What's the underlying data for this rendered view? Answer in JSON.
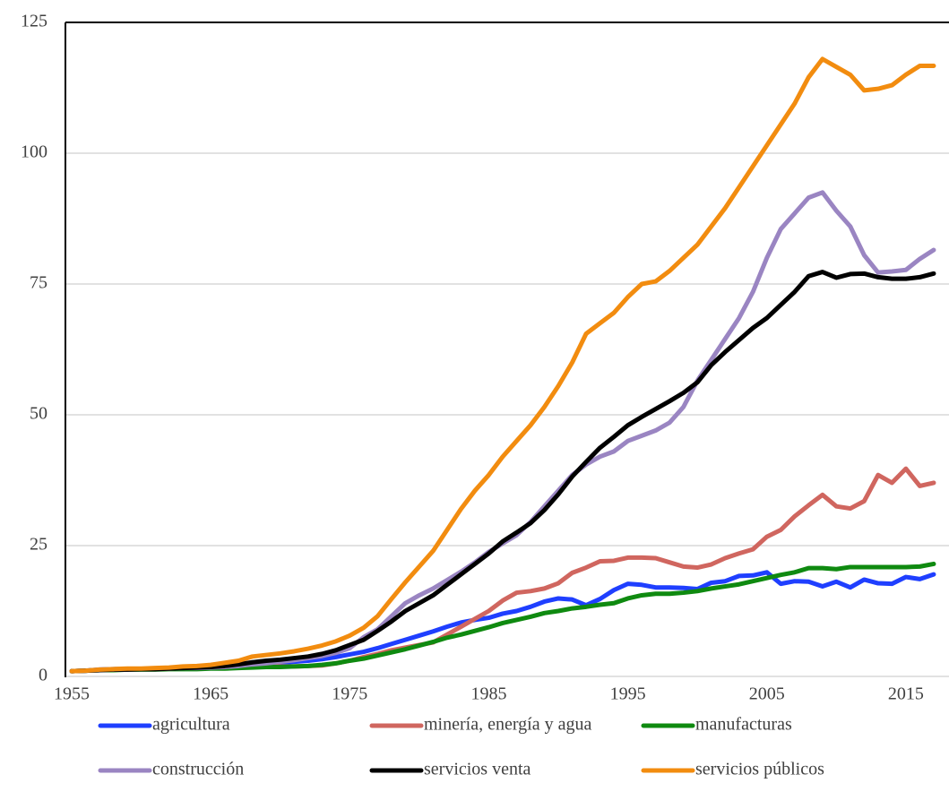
{
  "chart_data": {
    "type": "line",
    "x": [
      1955,
      1956,
      1957,
      1958,
      1959,
      1960,
      1961,
      1962,
      1963,
      1964,
      1965,
      1966,
      1967,
      1968,
      1969,
      1970,
      1971,
      1972,
      1973,
      1974,
      1975,
      1976,
      1977,
      1978,
      1979,
      1980,
      1981,
      1982,
      1983,
      1984,
      1985,
      1986,
      1987,
      1988,
      1989,
      1990,
      1991,
      1992,
      1993,
      1994,
      1995,
      1996,
      1997,
      1998,
      1999,
      2000,
      2001,
      2002,
      2003,
      2004,
      2005,
      2006,
      2007,
      2008,
      2009,
      2010,
      2011,
      2012,
      2013,
      2014,
      2015,
      2016,
      2017
    ],
    "series": [
      {
        "name": "agricultura",
        "color": "#1f3fff",
        "values": [
          1.0,
          1.1,
          1.3,
          1.4,
          1.4,
          1.4,
          1.4,
          1.5,
          1.6,
          1.6,
          1.7,
          1.9,
          2.1,
          2.3,
          2.5,
          2.6,
          2.8,
          3.0,
          3.3,
          3.7,
          4.2,
          4.7,
          5.4,
          6.2,
          7,
          7.8,
          8.6,
          9.5,
          10.3,
          10.8,
          11.2,
          12,
          12.5,
          13.3,
          14.3,
          14.9,
          14.7,
          13.6,
          14.8,
          16.5,
          17.7,
          17.5,
          17,
          17,
          16.9,
          16.7,
          17.9,
          18.2,
          19.2,
          19.3,
          19.9,
          17.7,
          18.2,
          18.1,
          17.2,
          18.1,
          17,
          18.5,
          17.8,
          17.7,
          19,
          18.6,
          19.5
        ]
      },
      {
        "name": "minería, energía y agua",
        "color": "#d0665f",
        "values": [
          1.0,
          1.1,
          1.2,
          1.3,
          1.3,
          1.4,
          1.4,
          1.5,
          1.5,
          1.6,
          1.6,
          1.7,
          1.7,
          1.8,
          1.8,
          1.9,
          1.9,
          2.0,
          2.1,
          2.5,
          3,
          3.7,
          4.3,
          5,
          5.5,
          6,
          6.5,
          8,
          9.5,
          11,
          12.5,
          14.5,
          16,
          16.3,
          16.8,
          17.8,
          19.8,
          20.8,
          22,
          22.1,
          22.7,
          22.7,
          22.6,
          21.8,
          21,
          20.8,
          21.4,
          22.6,
          23.5,
          24.3,
          26.7,
          28,
          30.6,
          32.7,
          34.7,
          32.5,
          32.1,
          33.5,
          38.5,
          37,
          39.7,
          36.4,
          37
        ]
      },
      {
        "name": "manufacturas",
        "color": "#0f8a10",
        "values": [
          1.0,
          1.1,
          1.2,
          1.2,
          1.3,
          1.3,
          1.3,
          1.4,
          1.4,
          1.4,
          1.5,
          1.5,
          1.6,
          1.7,
          1.8,
          1.8,
          1.9,
          2.0,
          2.2,
          2.5,
          3.0,
          3.4,
          4,
          4.6,
          5.2,
          5.9,
          6.6,
          7.4,
          8,
          8.7,
          9.4,
          10.2,
          10.8,
          11.4,
          12.1,
          12.5,
          13,
          13.3,
          13.7,
          14,
          14.9,
          15.5,
          15.8,
          15.8,
          16,
          16.3,
          16.8,
          17.2,
          17.6,
          18.2,
          18.8,
          19.4,
          19.9,
          20.7,
          20.7,
          20.5,
          20.9,
          20.9,
          20.9,
          20.9,
          20.9,
          21,
          21.5
        ]
      },
      {
        "name": "construcción",
        "color": "#9a85c2",
        "values": [
          1.0,
          1.1,
          1.2,
          1.3,
          1.3,
          1.4,
          1.4,
          1.5,
          1.6,
          1.6,
          1.7,
          1.8,
          2.0,
          2.3,
          2.5,
          2.8,
          3.1,
          3.5,
          3.9,
          4.5,
          5.4,
          7.5,
          9,
          11.5,
          14,
          15.5,
          16.8,
          18.4,
          20,
          21.8,
          23.8,
          25.4,
          27,
          29.5,
          32.5,
          35.5,
          38.5,
          40.5,
          42,
          43,
          45,
          46,
          47,
          48.5,
          51.5,
          56.5,
          60.5,
          64.5,
          68.5,
          73.5,
          80,
          85.5,
          88.5,
          91.5,
          92.5,
          89,
          86,
          80.5,
          77.2,
          77.4,
          77.7,
          79.8,
          81.5
        ]
      },
      {
        "name": "servicios venta",
        "color": "#000000",
        "values": [
          1.0,
          1.1,
          1.2,
          1.3,
          1.3,
          1.4,
          1.4,
          1.5,
          1.6,
          1.7,
          1.8,
          2.0,
          2.3,
          2.7,
          3.0,
          3.2,
          3.5,
          3.8,
          4.3,
          5.0,
          6.0,
          7.0,
          8.7,
          10.5,
          12.5,
          14,
          15.5,
          17.5,
          19.5,
          21.5,
          23.5,
          25.8,
          27.5,
          29.3,
          31.8,
          34.8,
          38.2,
          41,
          43.7,
          45.8,
          48,
          49.6,
          51.1,
          52.6,
          54.2,
          56.2,
          59.5,
          62,
          64.3,
          66.6,
          68.5,
          71,
          73.5,
          76.5,
          77.3,
          76.2,
          76.9,
          77,
          76.3,
          76,
          76,
          76.3,
          77
        ]
      },
      {
        "name": "servicios públicos",
        "color": "#f28c0f",
        "values": [
          1.0,
          1.1,
          1.3,
          1.4,
          1.5,
          1.5,
          1.6,
          1.7,
          1.9,
          2.0,
          2.2,
          2.6,
          3.0,
          3.8,
          4.1,
          4.4,
          4.8,
          5.3,
          5.9,
          6.7,
          7.8,
          9.3,
          11.5,
          14.8,
          18,
          21,
          24,
          28,
          32,
          35.5,
          38.5,
          42,
          45,
          48,
          51.5,
          55.5,
          60,
          65.5,
          67.5,
          69.5,
          72.5,
          75,
          75.5,
          77.5,
          80,
          82.5,
          86,
          89.5,
          93.5,
          97.5,
          101.5,
          105.5,
          109.5,
          114.5,
          118,
          116.5,
          115,
          112,
          112.3,
          113,
          115,
          116.7,
          116.7
        ]
      }
    ],
    "xlim": [
      1954.55,
      2018.1
    ],
    "xticks": [
      1955,
      1965,
      1975,
      1985,
      1995,
      2005,
      2015
    ],
    "ylim": [
      0,
      125
    ],
    "yticks": [
      0,
      25,
      50,
      75,
      100,
      125
    ],
    "grid": true,
    "legend": "bottom"
  }
}
